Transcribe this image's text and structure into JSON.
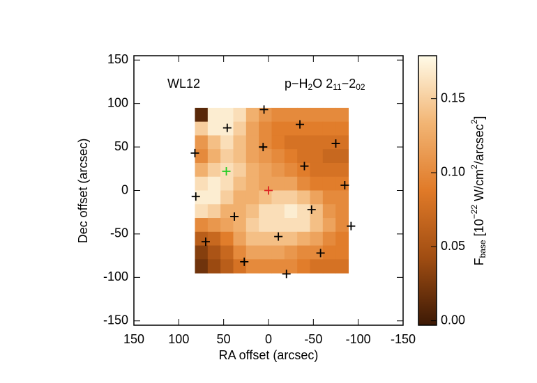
{
  "chart_data": {
    "type": "heatmap",
    "annotations": [
      "WL12"
    ],
    "line_label": [
      {
        "text": "p−H"
      },
      {
        "text": "2",
        "baseline": "sub"
      },
      {
        "text": "O 2"
      },
      {
        "text": "11",
        "baseline": "sub"
      },
      {
        "text": "−2"
      },
      {
        "text": "02",
        "baseline": "sub"
      }
    ],
    "x_label": "RA offset (arcsec)",
    "y_label": "Dec offset (arcsec)",
    "colorbar_label": [
      {
        "text": "F"
      },
      {
        "text": "base",
        "baseline": "sub"
      },
      {
        "text": " [10"
      },
      {
        "text": "−22",
        "baseline": "sup"
      },
      {
        "text": " W/cm"
      },
      {
        "text": "2",
        "baseline": "sup"
      },
      {
        "text": "/arcsec"
      },
      {
        "text": "2",
        "baseline": "sup"
      },
      {
        "text": "]"
      }
    ],
    "xlim": [
      150,
      -150
    ],
    "xticks": [
      150,
      100,
      50,
      0,
      -50,
      -100,
      -150
    ],
    "ylim": [
      -155,
      155
    ],
    "yticks": [
      -150,
      -100,
      -50,
      0,
      50,
      100,
      150
    ],
    "map_xlim": [
      82,
      -89
    ],
    "map_ylim": [
      95,
      -95
    ],
    "z": [
      [
        0.01,
        0.17,
        0.17,
        0.16,
        0.13,
        0.11,
        0.1,
        0.1,
        0.1,
        0.1,
        0.1,
        0.1
      ],
      [
        0.15,
        0.17,
        0.17,
        0.15,
        0.12,
        0.1,
        0.09,
        0.09,
        0.09,
        0.09,
        0.09,
        0.09
      ],
      [
        0.11,
        0.14,
        0.16,
        0.14,
        0.12,
        0.1,
        0.09,
        0.08,
        0.08,
        0.08,
        0.08,
        0.08
      ],
      [
        0.1,
        0.13,
        0.15,
        0.14,
        0.12,
        0.11,
        0.1,
        0.09,
        0.08,
        0.08,
        0.07,
        0.07
      ],
      [
        0.13,
        0.15,
        0.16,
        0.15,
        0.13,
        0.12,
        0.11,
        0.1,
        0.09,
        0.08,
        0.08,
        0.08
      ],
      [
        0.16,
        0.17,
        0.16,
        0.14,
        0.13,
        0.12,
        0.12,
        0.12,
        0.1,
        0.09,
        0.09,
        0.09
      ],
      [
        0.17,
        0.17,
        0.15,
        0.13,
        0.13,
        0.14,
        0.15,
        0.15,
        0.14,
        0.12,
        0.1,
        0.1
      ],
      [
        0.16,
        0.15,
        0.13,
        0.13,
        0.14,
        0.16,
        0.16,
        0.17,
        0.16,
        0.14,
        0.11,
        0.1
      ],
      [
        0.1,
        0.11,
        0.12,
        0.13,
        0.15,
        0.16,
        0.16,
        0.16,
        0.16,
        0.14,
        0.12,
        0.1
      ],
      [
        0.06,
        0.07,
        0.09,
        0.12,
        0.14,
        0.14,
        0.14,
        0.14,
        0.13,
        0.12,
        0.1,
        0.09
      ],
      [
        0.03,
        0.05,
        0.07,
        0.1,
        0.12,
        0.12,
        0.12,
        0.11,
        0.1,
        0.1,
        0.09,
        0.09
      ],
      [
        0.02,
        0.04,
        0.06,
        0.08,
        0.1,
        0.1,
        0.1,
        0.1,
        0.09,
        0.08,
        0.08,
        0.08
      ]
    ],
    "clim": [
      -0.003,
      0.179
    ],
    "cticks": [
      {
        "value": 0,
        "label": "0.00"
      },
      0.05,
      {
        "value": 0.1,
        "label": "0.10"
      },
      0.15
    ],
    "colormap": [
      "#3c1905",
      "#a04d12",
      "#e07a28",
      "#f2b574",
      "#fffbe8"
    ],
    "series": [
      {
        "color": "#000000",
        "x": [
          5,
          46,
          -35,
          -75,
          82,
          6,
          -40,
          -85,
          81,
          -48,
          38,
          -92,
          70,
          -11,
          -58,
          27,
          -20
        ],
        "y": [
          93,
          72,
          76,
          54,
          43,
          50,
          28,
          6,
          -7,
          -22,
          -30,
          -41,
          -59,
          -53,
          -72,
          -82,
          -96
        ]
      },
      {
        "color": "#22cc22",
        "x": [
          47
        ],
        "y": [
          22
        ]
      },
      {
        "color": "#dd2222",
        "x": [
          0
        ],
        "y": [
          0
        ]
      }
    ]
  }
}
